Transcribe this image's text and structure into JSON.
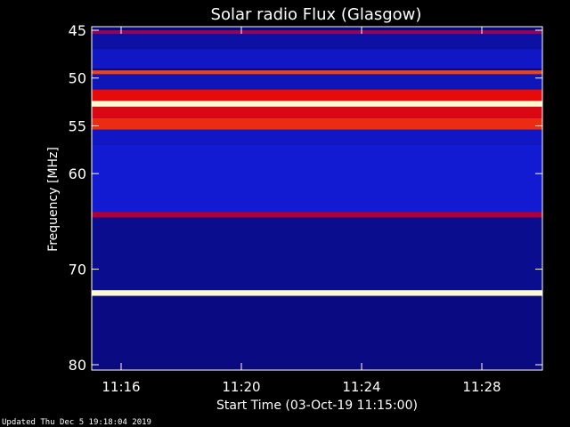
{
  "chart_data": {
    "type": "heatmap",
    "title": "Solar radio Flux (Glasgow)",
    "xlabel": "Start Time (03-Oct-19 11:15:00)",
    "ylabel": "Frequency [MHz]",
    "x_range_minutes": [
      11.25,
      15.0
    ],
    "xlim": [
      "11:15:00",
      "11:30:00"
    ],
    "x_ticks": [
      {
        "label": "11:16",
        "minute": 16
      },
      {
        "label": "11:20",
        "minute": 20
      },
      {
        "label": "11:24",
        "minute": 24
      },
      {
        "label": "11:28",
        "minute": 28
      }
    ],
    "ylim": [
      45,
      80
    ],
    "y_ticks": [
      45,
      50,
      55,
      60,
      70,
      80
    ],
    "bands": [
      {
        "mhz_from": 45.0,
        "mhz_to": 45.4,
        "level": 0.55
      },
      {
        "mhz_from": 45.4,
        "mhz_to": 47.0,
        "level": 0.25
      },
      {
        "mhz_from": 47.0,
        "mhz_to": 49.0,
        "level": 0.3
      },
      {
        "mhz_from": 49.2,
        "mhz_to": 49.6,
        "level": 0.8
      },
      {
        "mhz_from": 49.6,
        "mhz_to": 51.2,
        "level": 0.28
      },
      {
        "mhz_from": 51.2,
        "mhz_to": 52.4,
        "level": 0.75
      },
      {
        "mhz_from": 52.4,
        "mhz_to": 53.0,
        "level": 1.0
      },
      {
        "mhz_from": 53.0,
        "mhz_to": 54.2,
        "level": 0.72
      },
      {
        "mhz_from": 54.2,
        "mhz_to": 55.4,
        "level": 0.78
      },
      {
        "mhz_from": 55.4,
        "mhz_to": 57.0,
        "level": 0.3
      },
      {
        "mhz_from": 57.0,
        "mhz_to": 64.0,
        "level": 0.32
      },
      {
        "mhz_from": 64.0,
        "mhz_to": 64.6,
        "level": 0.6
      },
      {
        "mhz_from": 64.6,
        "mhz_to": 72.2,
        "level": 0.22
      },
      {
        "mhz_from": 72.2,
        "mhz_to": 72.8,
        "level": 1.0
      },
      {
        "mhz_from": 72.8,
        "mhz_to": 80.0,
        "level": 0.2
      }
    ]
  },
  "footer": "Updated Thu Dec  5 19:18:04 2019"
}
